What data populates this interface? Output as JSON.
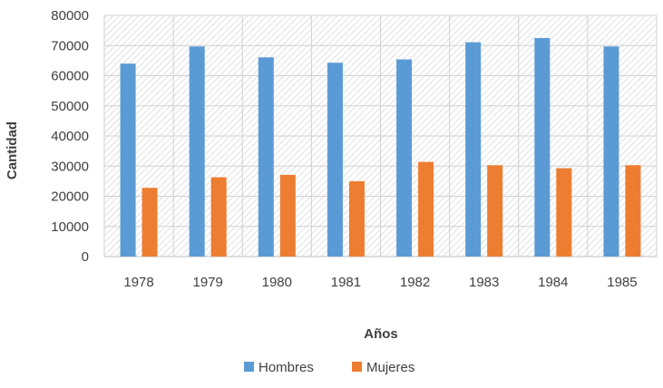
{
  "chart_data": {
    "type": "bar",
    "categories": [
      "1978",
      "1979",
      "1980",
      "1981",
      "1982",
      "1983",
      "1984",
      "1985"
    ],
    "series": [
      {
        "name": "Hombres",
        "color": "#5b9bd5",
        "values": [
          64000,
          69700,
          66100,
          64300,
          65400,
          71100,
          72500,
          69700
        ]
      },
      {
        "name": "Mujeres",
        "color": "#ed7d31",
        "values": [
          22800,
          26300,
          27100,
          25000,
          31400,
          30300,
          29300,
          30300
        ]
      }
    ],
    "xlabel": "Años",
    "ylabel": "Cantidad",
    "ylim": [
      0,
      80000
    ],
    "yticks": [
      "0",
      "10000",
      "20000",
      "30000",
      "40000",
      "50000",
      "60000",
      "70000",
      "80000"
    ],
    "grid": true,
    "plot_background": "hatched",
    "legend_position": "bottom"
  }
}
